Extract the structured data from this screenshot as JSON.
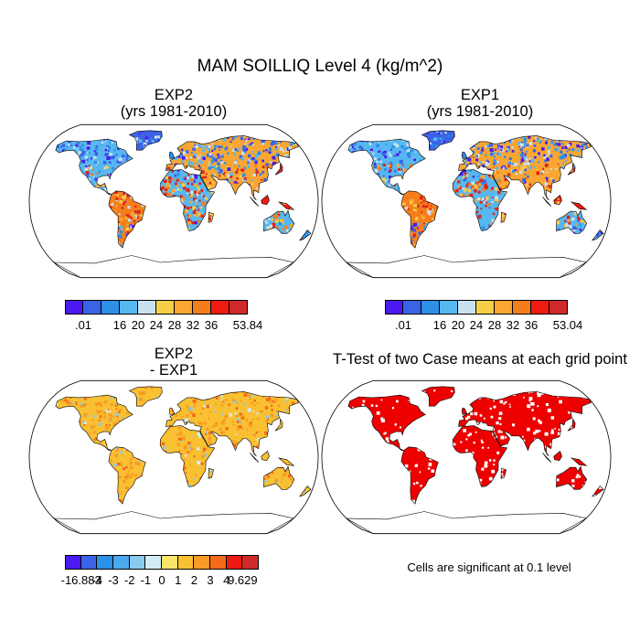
{
  "chart_data": {
    "type": "heatmap",
    "title": "MAM SOILLIQ Level 4 (kg/m^2)",
    "panels": [
      {
        "id": "exp2",
        "title_line1": "EXP2",
        "title_line2": "(yrs 1981-2010)",
        "colorbar": {
          "labels": [
            ".01",
            "",
            "16",
            "20",
            "24",
            "28",
            "32",
            "36",
            "",
            "53.84"
          ],
          "colors": [
            "#4b1af0",
            "#3c63e6",
            "#2c8fe8",
            "#56b8f0",
            "#c8e3ee",
            "#f7ce4a",
            "#f9a632",
            "#f57e1c",
            "#ee1b10",
            "#cf2a2a"
          ]
        }
      },
      {
        "id": "exp1",
        "title_line1": "EXP1",
        "title_line2": "(yrs 1981-2010)",
        "colorbar": {
          "labels": [
            ".01",
            "",
            "16",
            "20",
            "24",
            "28",
            "32",
            "36",
            "",
            "53.04"
          ],
          "colors": [
            "#4b1af0",
            "#3c63e6",
            "#2c8fe8",
            "#56b8f0",
            "#c8e3ee",
            "#f7ce4a",
            "#f9a632",
            "#f57e1c",
            "#ee1b10",
            "#cf2a2a"
          ]
        }
      },
      {
        "id": "diff",
        "title_line1": "EXP2",
        "title_line2": "- EXP1",
        "colorbar": {
          "labels": [
            "-16.883",
            "-4",
            "-3",
            "-2",
            "-1",
            "0",
            "1",
            "2",
            "3",
            "4",
            "9.629"
          ],
          "colors": [
            "#4b1af0",
            "#3c63e6",
            "#2c8fe8",
            "#4aa8ee",
            "#8acbee",
            "#d2ecf4",
            "#fbe46a",
            "#f9c132",
            "#f79a26",
            "#f26a1a",
            "#ec1a10",
            "#cf2a2a"
          ]
        }
      },
      {
        "id": "ttest",
        "title_line1": "T-Test of two Case means at each grid point",
        "note": "Cells are significant at 0.1 level",
        "fill_color": "#ee0000"
      }
    ]
  },
  "colors": {
    "ocean": "#ffffff",
    "coast": "#000000"
  }
}
